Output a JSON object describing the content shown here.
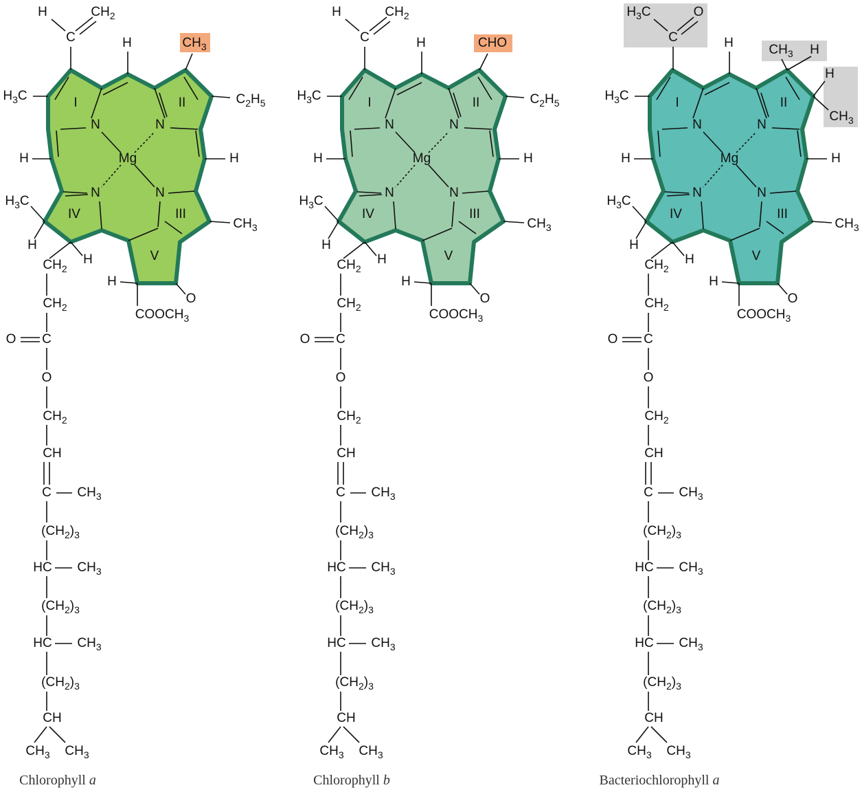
{
  "molecules": [
    {
      "name": "Chlorophyll a",
      "top_group": [
        "H",
        "C",
        "CH2"
      ],
      "ring_substituents": [
        "CH3",
        "C2H5"
      ],
      "core": [
        "H",
        "H3C",
        "I",
        "II",
        "N",
        "N",
        "H",
        "Mg",
        "H",
        "H3C",
        "N",
        "N",
        "IV",
        "III",
        "CH3",
        "H",
        "H",
        "V",
        "H",
        "O",
        "COOCH3"
      ],
      "chain": [
        "CH2",
        "CH2",
        "O",
        "C",
        "O",
        "CH2",
        "CH",
        "C",
        "CH3",
        "(CH2)3",
        "HC",
        "CH3",
        "(CH2)3",
        "HC",
        "CH3",
        "(CH2)3",
        "CH",
        "CH3",
        "CH3"
      ]
    },
    {
      "name": "Chlorophyll b",
      "top_group": [
        "H",
        "C",
        "CH2"
      ],
      "ring_substituents": [
        "CHO",
        "C2H5"
      ],
      "core": [
        "H",
        "H3C",
        "I",
        "II",
        "N",
        "N",
        "H",
        "Mg",
        "H",
        "H3C",
        "N",
        "N",
        "IV",
        "III",
        "CH3",
        "H",
        "H",
        "V",
        "H",
        "O",
        "COOCH3"
      ],
      "chain": [
        "CH2",
        "CH2",
        "O",
        "C",
        "O",
        "CH2",
        "CH",
        "C",
        "CH3",
        "(CH2)3",
        "HC",
        "CH3",
        "(CH2)3",
        "HC",
        "CH3",
        "(CH2)3",
        "CH",
        "CH3",
        "CH3"
      ]
    },
    {
      "name": "Bacteriochlorophyll a",
      "top_group": [
        "H3C",
        "C",
        "O"
      ],
      "ring_substituents": [
        "CH3",
        "H",
        "H",
        "CH3"
      ],
      "core": [
        "H",
        "H3C",
        "I",
        "II",
        "N",
        "N",
        "H",
        "Mg",
        "H",
        "H3C",
        "N",
        "N",
        "IV",
        "III",
        "CH3",
        "H",
        "H",
        "V",
        "H",
        "O",
        "COOCH3"
      ],
      "chain": [
        "CH2",
        "CH2",
        "O",
        "C",
        "O",
        "CH2",
        "CH",
        "C",
        "CH3",
        "(CH2)3",
        "HC",
        "CH3",
        "(CH2)3",
        "HC",
        "CH3",
        "(CH2)3",
        "CH",
        "CH3",
        "CH3"
      ]
    }
  ]
}
